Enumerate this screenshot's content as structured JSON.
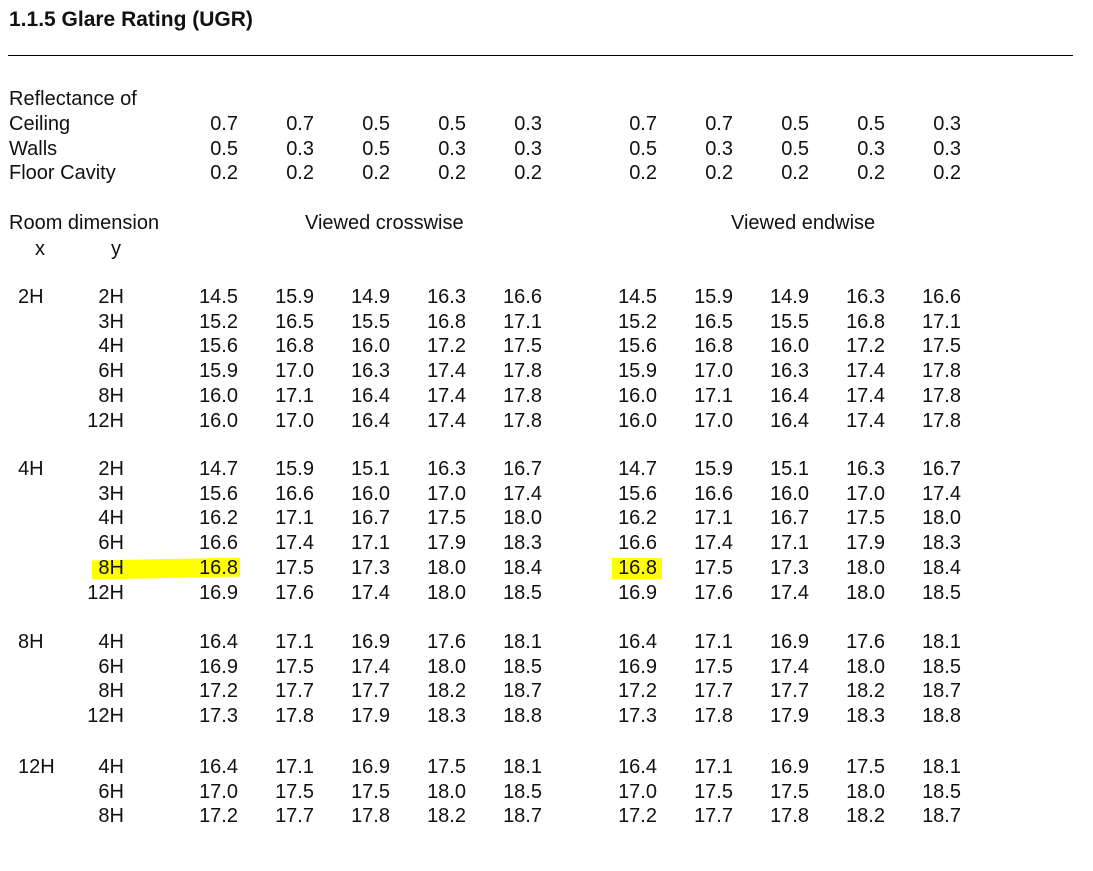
{
  "section": {
    "title": "1.1.5  Glare Rating (UGR)"
  },
  "reflectance": {
    "heading": "Reflectance of",
    "rows": [
      {
        "label": "Ceiling",
        "values": [
          "0.7",
          "0.7",
          "0.5",
          "0.5",
          "0.3",
          "0.7",
          "0.7",
          "0.5",
          "0.5",
          "0.3"
        ]
      },
      {
        "label": "Walls",
        "values": [
          "0.5",
          "0.3",
          "0.5",
          "0.3",
          "0.3",
          "0.5",
          "0.3",
          "0.5",
          "0.3",
          "0.3"
        ]
      },
      {
        "label": "Floor Cavity",
        "values": [
          "0.2",
          "0.2",
          "0.2",
          "0.2",
          "0.2",
          "0.2",
          "0.2",
          "0.2",
          "0.2",
          "0.2"
        ]
      }
    ]
  },
  "header": {
    "room_dimension": "Room dimension",
    "x_label": "x",
    "y_label": "y",
    "crosswise": "Viewed crosswise",
    "endwise": "Viewed endwise"
  },
  "highlight_color": "#ffff00",
  "highlighted": {
    "group": 1,
    "row": 4
  },
  "groups": [
    {
      "x": "2H",
      "rows": [
        {
          "y": "2H",
          "values": [
            "14.5",
            "15.9",
            "14.9",
            "16.3",
            "16.6",
            "14.5",
            "15.9",
            "14.9",
            "16.3",
            "16.6"
          ]
        },
        {
          "y": "3H",
          "values": [
            "15.2",
            "16.5",
            "15.5",
            "16.8",
            "17.1",
            "15.2",
            "16.5",
            "15.5",
            "16.8",
            "17.1"
          ]
        },
        {
          "y": "4H",
          "values": [
            "15.6",
            "16.8",
            "16.0",
            "17.2",
            "17.5",
            "15.6",
            "16.8",
            "16.0",
            "17.2",
            "17.5"
          ]
        },
        {
          "y": "6H",
          "values": [
            "15.9",
            "17.0",
            "16.3",
            "17.4",
            "17.8",
            "15.9",
            "17.0",
            "16.3",
            "17.4",
            "17.8"
          ]
        },
        {
          "y": "8H",
          "values": [
            "16.0",
            "17.1",
            "16.4",
            "17.4",
            "17.8",
            "16.0",
            "17.1",
            "16.4",
            "17.4",
            "17.8"
          ]
        },
        {
          "y": "12H",
          "values": [
            "16.0",
            "17.0",
            "16.4",
            "17.4",
            "17.8",
            "16.0",
            "17.0",
            "16.4",
            "17.4",
            "17.8"
          ]
        }
      ]
    },
    {
      "x": "4H",
      "rows": [
        {
          "y": "2H",
          "values": [
            "14.7",
            "15.9",
            "15.1",
            "16.3",
            "16.7",
            "14.7",
            "15.9",
            "15.1",
            "16.3",
            "16.7"
          ]
        },
        {
          "y": "3H",
          "values": [
            "15.6",
            "16.6",
            "16.0",
            "17.0",
            "17.4",
            "15.6",
            "16.6",
            "16.0",
            "17.0",
            "17.4"
          ]
        },
        {
          "y": "4H",
          "values": [
            "16.2",
            "17.1",
            "16.7",
            "17.5",
            "18.0",
            "16.2",
            "17.1",
            "16.7",
            "17.5",
            "18.0"
          ]
        },
        {
          "y": "6H",
          "values": [
            "16.6",
            "17.4",
            "17.1",
            "17.9",
            "18.3",
            "16.6",
            "17.4",
            "17.1",
            "17.9",
            "18.3"
          ]
        },
        {
          "y": "8H",
          "values": [
            "16.8",
            "17.5",
            "17.3",
            "18.0",
            "18.4",
            "16.8",
            "17.5",
            "17.3",
            "18.0",
            "18.4"
          ]
        },
        {
          "y": "12H",
          "values": [
            "16.9",
            "17.6",
            "17.4",
            "18.0",
            "18.5",
            "16.9",
            "17.6",
            "17.4",
            "18.0",
            "18.5"
          ]
        }
      ]
    },
    {
      "x": "8H",
      "rows": [
        {
          "y": "4H",
          "values": [
            "16.4",
            "17.1",
            "16.9",
            "17.6",
            "18.1",
            "16.4",
            "17.1",
            "16.9",
            "17.6",
            "18.1"
          ]
        },
        {
          "y": "6H",
          "values": [
            "16.9",
            "17.5",
            "17.4",
            "18.0",
            "18.5",
            "16.9",
            "17.5",
            "17.4",
            "18.0",
            "18.5"
          ]
        },
        {
          "y": "8H",
          "values": [
            "17.2",
            "17.7",
            "17.7",
            "18.2",
            "18.7",
            "17.2",
            "17.7",
            "17.7",
            "18.2",
            "18.7"
          ]
        },
        {
          "y": "12H",
          "values": [
            "17.3",
            "17.8",
            "17.9",
            "18.3",
            "18.8",
            "17.3",
            "17.8",
            "17.9",
            "18.3",
            "18.8"
          ]
        }
      ]
    },
    {
      "x": "12H",
      "rows": [
        {
          "y": "4H",
          "values": [
            "16.4",
            "17.1",
            "16.9",
            "17.5",
            "18.1",
            "16.4",
            "17.1",
            "16.9",
            "17.5",
            "18.1"
          ]
        },
        {
          "y": "6H",
          "values": [
            "17.0",
            "17.5",
            "17.5",
            "18.0",
            "18.5",
            "17.0",
            "17.5",
            "17.5",
            "18.0",
            "18.5"
          ]
        },
        {
          "y": "8H",
          "values": [
            "17.2",
            "17.7",
            "17.8",
            "18.2",
            "18.7",
            "17.2",
            "17.7",
            "17.8",
            "18.2",
            "18.7"
          ]
        }
      ]
    }
  ]
}
